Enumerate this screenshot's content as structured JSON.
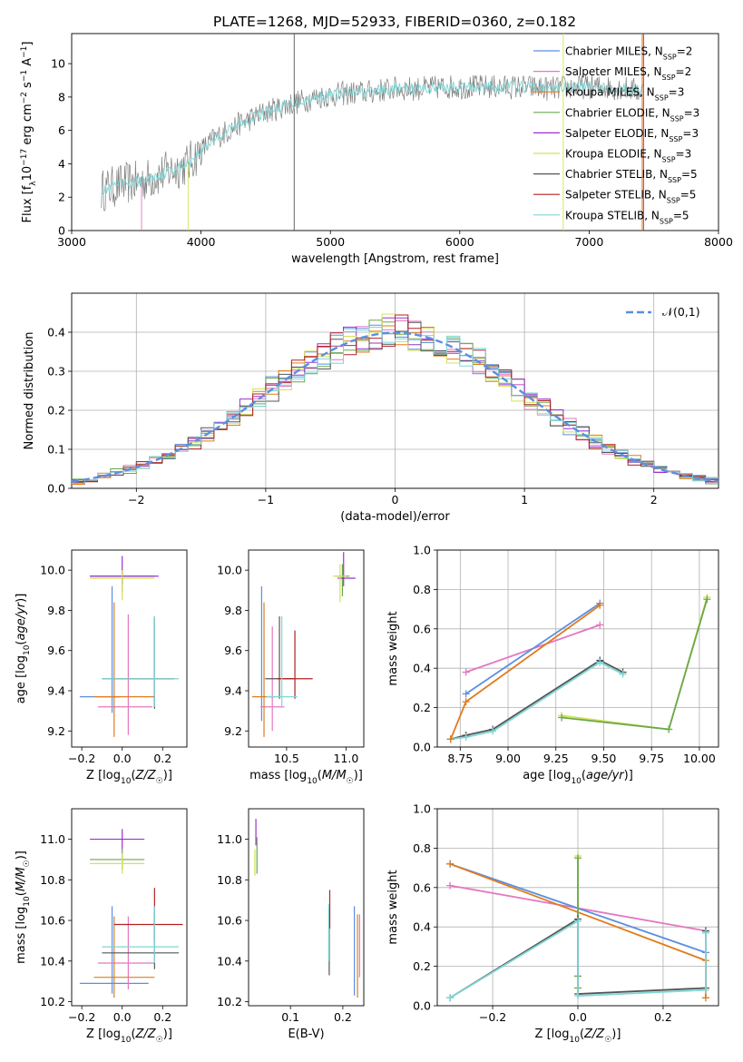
{
  "figure_title": "PLATE=1268, MJD=52933, FIBERID=0360, z=0.182",
  "colors": {
    "Chabrier MILES": "#5b8fe0",
    "Salpeter MILES": "#e377c2",
    "Kroupa MILES": "#e07b1f",
    "Chabrier ELODIE": "#6aa84f",
    "Salpeter ELODIE": "#9b30d0",
    "Kroupa ELODIE": "#d4e157",
    "Chabrier STELIB": "#555555",
    "Salpeter STELIB": "#b22222",
    "Kroupa STELIB": "#7fd6d6",
    "normal": "#5b8fe0",
    "grid": "#b0b0b0"
  },
  "chart_data": [
    {
      "id": "spectrum",
      "type": "line",
      "xlabel": "wavelength [Angstrom, rest frame]",
      "ylabel": "Flux [f_λ10^-17 erg cm^-2 s^-1 A^-1]",
      "xlim": [
        3000,
        8000
      ],
      "ylim": [
        0,
        11.8
      ],
      "xticks": [
        3000,
        4000,
        5000,
        6000,
        7000,
        8000
      ],
      "yticks": [
        0,
        2,
        4,
        6,
        8,
        10
      ],
      "grid": false,
      "legend_position": "top-right",
      "observed_color": "#808080",
      "envelope": {
        "x": [
          3230,
          3400,
          3500,
          3600,
          3800,
          3900,
          4000,
          4100,
          4300,
          4500,
          4700,
          4900,
          5100,
          5300,
          5500,
          5700,
          5900,
          6100,
          6300,
          6500,
          6700,
          6900,
          7100,
          7300,
          7420
        ],
        "y": [
          2.4,
          2.8,
          2.9,
          3.1,
          3.7,
          4.0,
          4.8,
          5.5,
          6.4,
          7.1,
          7.6,
          8.0,
          8.2,
          8.3,
          8.5,
          8.5,
          8.6,
          8.6,
          8.6,
          8.6,
          8.5,
          8.6,
          8.6,
          8.5,
          8.3
        ]
      },
      "legend": [
        {
          "label": "Chabrier MILES",
          "nssp": "2"
        },
        {
          "label": "Salpeter MILES",
          "nssp": "2"
        },
        {
          "label": "Kroupa MILES",
          "nssp": "3"
        },
        {
          "label": "Chabrier ELODIE",
          "nssp": "3"
        },
        {
          "label": "Salpeter ELODIE",
          "nssp": "3"
        },
        {
          "label": "Kroupa ELODIE",
          "nssp": "3"
        },
        {
          "label": "Chabrier STELIB",
          "nssp": "5"
        },
        {
          "label": "Salpeter STELIB",
          "nssp": "5"
        },
        {
          "label": "Kroupa STELIB",
          "nssp": "5"
        }
      ]
    },
    {
      "id": "residuals",
      "type": "step",
      "xlabel": "(data-model)/error",
      "ylabel": "Normed distribution",
      "xlim": [
        -2.5,
        2.5
      ],
      "ylim": [
        0,
        0.5
      ],
      "xticks": [
        -2,
        -1,
        0,
        1,
        2
      ],
      "yticks": [
        0.0,
        0.1,
        0.2,
        0.3,
        0.4
      ],
      "grid": true,
      "legend_position": "top-right",
      "legend": [
        "𝒩(0,1)"
      ],
      "bin_width": 0.1,
      "bins_start": -2.5
    },
    {
      "id": "age-vs-Z",
      "type": "errorbar",
      "xlabel": "Z [log10(Z/Z☉)]",
      "ylabel": "age  [log10(age/yr)]",
      "xlim": [
        -0.25,
        0.32
      ],
      "ylim": [
        9.12,
        10.1
      ],
      "xticks": [
        -0.2,
        0.0,
        0.2
      ],
      "yticks": [
        9.2,
        9.4,
        9.6,
        9.8,
        10.0
      ],
      "grid": false,
      "points": [
        {
          "model": "Chabrier MILES",
          "x": -0.05,
          "y": 9.37,
          "xerr": [
            0.16,
            0.04
          ],
          "yerr": [
            0.08,
            0.55
          ]
        },
        {
          "model": "Salpeter MILES",
          "x": 0.03,
          "y": 9.32,
          "xerr": [
            0.15,
            0.12
          ],
          "yerr": [
            0.14,
            0.46
          ]
        },
        {
          "model": "Kroupa MILES",
          "x": -0.04,
          "y": 9.37,
          "xerr": [
            0.1,
            0.2
          ],
          "yerr": [
            0.2,
            0.47
          ]
        },
        {
          "model": "Chabrier ELODIE",
          "x": 0.0,
          "y": 9.97,
          "xerr": [
            0.16,
            0.16
          ],
          "yerr": [
            0.08,
            0.03
          ]
        },
        {
          "model": "Salpeter ELODIE",
          "x": 0.0,
          "y": 9.97,
          "xerr": [
            0.16,
            0.18
          ],
          "yerr": [
            0.04,
            0.1
          ]
        },
        {
          "model": "Kroupa ELODIE",
          "x": 0.0,
          "y": 9.96,
          "xerr": [
            0.16,
            0.16
          ],
          "yerr": [
            0.11,
            0.04
          ]
        },
        {
          "model": "Chabrier STELIB",
          "x": 0.16,
          "y": 9.46,
          "xerr": [
            0.26,
            0.09
          ],
          "yerr": [
            0.15,
            0.3
          ]
        },
        {
          "model": "Salpeter STELIB",
          "x": 0.16,
          "y": 9.46,
          "xerr": [
            0.2,
            0.1
          ],
          "yerr": [
            0.14,
            0.31
          ]
        },
        {
          "model": "Kroupa STELIB",
          "x": 0.16,
          "y": 9.46,
          "xerr": [
            0.26,
            0.12
          ],
          "yerr": [
            0.14,
            0.31
          ]
        }
      ]
    },
    {
      "id": "age-vs-mass",
      "type": "errorbar",
      "xlabel": "mass [log10(M/M☉)]",
      "ylabel": "",
      "xlim": [
        10.18,
        11.15
      ],
      "ylim": [
        9.12,
        10.1
      ],
      "xticks": [
        10.5,
        11.0
      ],
      "yticks": [
        9.2,
        9.4,
        9.6,
        9.8,
        10.0
      ],
      "grid": false,
      "points": [
        {
          "model": "Chabrier MILES",
          "x": 10.29,
          "y": 9.37,
          "xerr": [
            0.0,
            0.0
          ],
          "yerr": [
            0.12,
            0.55
          ]
        },
        {
          "model": "Salpeter MILES",
          "x": 10.38,
          "y": 9.32,
          "xerr": [
            0.1,
            0.1
          ],
          "yerr": [
            0.12,
            0.4
          ]
        },
        {
          "model": "Kroupa MILES",
          "x": 10.31,
          "y": 9.37,
          "xerr": [
            0.1,
            0.1
          ],
          "yerr": [
            0.2,
            0.47
          ]
        },
        {
          "model": "Chabrier ELODIE",
          "x": 10.97,
          "y": 9.97,
          "xerr": [
            0.05,
            0.06
          ],
          "yerr": [
            0.1,
            0.06
          ]
        },
        {
          "model": "Salpeter ELODIE",
          "x": 10.98,
          "y": 9.96,
          "xerr": [
            0.05,
            0.1
          ],
          "yerr": [
            0.04,
            0.13
          ]
        },
        {
          "model": "Kroupa ELODIE",
          "x": 10.95,
          "y": 9.97,
          "xerr": [
            0.06,
            0.05
          ],
          "yerr": [
            0.13,
            0.06
          ]
        },
        {
          "model": "Chabrier STELIB",
          "x": 10.44,
          "y": 9.46,
          "xerr": [
            0.12,
            0.12
          ],
          "yerr": [
            0.1,
            0.31
          ]
        },
        {
          "model": "Salpeter STELIB",
          "x": 10.57,
          "y": 9.46,
          "xerr": [
            0.15,
            0.15
          ],
          "yerr": [
            0.1,
            0.24
          ]
        },
        {
          "model": "Kroupa STELIB",
          "x": 10.46,
          "y": 9.37,
          "xerr": [
            0.13,
            0.13
          ],
          "yerr": [
            0.05,
            0.4
          ]
        }
      ]
    },
    {
      "id": "weight-vs-age",
      "type": "line",
      "xlabel": "age  [log10(age/yr)]",
      "ylabel": "mass weight",
      "xlim": [
        8.63,
        10.1
      ],
      "ylim": [
        0,
        1
      ],
      "xticks": [
        8.75,
        9.0,
        9.25,
        9.5,
        9.75,
        10.0
      ],
      "yticks": [
        0.0,
        0.2,
        0.4,
        0.6,
        0.8,
        1.0
      ],
      "grid": true,
      "series": [
        {
          "model": "Kroupa ELODIE",
          "x": [
            9.28,
            9.84,
            10.04
          ],
          "y": [
            0.16,
            0.09,
            0.76
          ]
        },
        {
          "model": "Chabrier ELODIE",
          "x": [
            9.28,
            9.84,
            10.04
          ],
          "y": [
            0.15,
            0.09,
            0.75
          ]
        },
        {
          "model": "Chabrier STELIB",
          "x": [
            8.7,
            8.78,
            8.92,
            9.48,
            9.6
          ],
          "y": [
            0.04,
            0.06,
            0.09,
            0.44,
            0.38
          ]
        },
        {
          "model": "Kroupa STELIB",
          "x": [
            8.7,
            8.78,
            8.92,
            9.48,
            9.6
          ],
          "y": [
            0.04,
            0.05,
            0.08,
            0.43,
            0.37
          ]
        },
        {
          "model": "Salpeter MILES",
          "x": [
            8.78,
            9.48
          ],
          "y": [
            0.38,
            0.62
          ]
        },
        {
          "model": "Chabrier MILES",
          "x": [
            8.78,
            9.48
          ],
          "y": [
            0.27,
            0.73
          ]
        },
        {
          "model": "Kroupa MILES",
          "x": [
            8.7,
            8.78,
            9.48
          ],
          "y": [
            0.04,
            0.23,
            0.72
          ]
        }
      ]
    },
    {
      "id": "mass-vs-Z",
      "type": "errorbar",
      "xlabel": "Z [log10(Z/Z☉)]",
      "ylabel": "mass [log10(M/M☉)]",
      "xlim": [
        -0.25,
        0.32
      ],
      "ylim": [
        10.18,
        11.15
      ],
      "xticks": [
        -0.2,
        0.0,
        0.2
      ],
      "yticks": [
        10.2,
        10.4,
        10.6,
        10.8,
        11.0
      ],
      "grid": false,
      "points": [
        {
          "model": "Chabrier MILES",
          "x": -0.05,
          "y": 10.29,
          "xerr": [
            0.16,
            0.18
          ],
          "yerr": [
            0.05,
            0.38
          ]
        },
        {
          "model": "Salpeter MILES",
          "x": 0.03,
          "y": 10.39,
          "xerr": [
            0.15,
            0.13
          ],
          "yerr": [
            0.13,
            0.23
          ]
        },
        {
          "model": "Kroupa MILES",
          "x": -0.04,
          "y": 10.32,
          "xerr": [
            0.1,
            0.2
          ],
          "yerr": [
            0.1,
            0.3
          ]
        },
        {
          "model": "Chabrier ELODIE",
          "x": 0.0,
          "y": 10.9,
          "xerr": [
            0.16,
            0.11
          ],
          "yerr": [
            0.05,
            0.05
          ]
        },
        {
          "model": "Salpeter ELODIE",
          "x": 0.0,
          "y": 11.0,
          "xerr": [
            0.16,
            0.11
          ],
          "yerr": [
            0.05,
            0.05
          ]
        },
        {
          "model": "Kroupa ELODIE",
          "x": 0.0,
          "y": 10.88,
          "xerr": [
            0.16,
            0.11
          ],
          "yerr": [
            0.05,
            0.05
          ]
        },
        {
          "model": "Chabrier STELIB",
          "x": 0.16,
          "y": 10.44,
          "xerr": [
            0.26,
            0.12
          ],
          "yerr": [
            0.08,
            0.2
          ]
        },
        {
          "model": "Salpeter STELIB",
          "x": 0.16,
          "y": 10.58,
          "xerr": [
            0.2,
            0.14
          ],
          "yerr": [
            0.08,
            0.18
          ]
        },
        {
          "model": "Kroupa STELIB",
          "x": 0.16,
          "y": 10.47,
          "xerr": [
            0.26,
            0.12
          ],
          "yerr": [
            0.08,
            0.2
          ]
        }
      ]
    },
    {
      "id": "mass-vs-ebv",
      "type": "errorbar",
      "xlabel": "E(B-V)",
      "ylabel": "",
      "xlim": [
        0.02,
        0.24
      ],
      "ylim": [
        10.18,
        11.15
      ],
      "xticks": [
        0.1,
        0.2
      ],
      "yticks": [
        10.2,
        10.4,
        10.6,
        10.8,
        11.0
      ],
      "grid": false,
      "points": [
        {
          "model": "Chabrier MILES",
          "x": 0.222,
          "y": 10.29,
          "xerr": [
            0.0,
            0.0
          ],
          "yerr": [
            0.06,
            0.38
          ]
        },
        {
          "model": "Salpeter MILES",
          "x": 0.232,
          "y": 10.43,
          "xerr": [
            0.0,
            0.0
          ],
          "yerr": [
            0.11,
            0.2
          ]
        },
        {
          "model": "Kroupa MILES",
          "x": 0.228,
          "y": 10.37,
          "xerr": [
            0.0,
            0.0
          ],
          "yerr": [
            0.15,
            0.26
          ]
        },
        {
          "model": "Chabrier ELODIE",
          "x": 0.036,
          "y": 10.93,
          "xerr": [
            0.0,
            0.0
          ],
          "yerr": [
            0.1,
            0.08
          ]
        },
        {
          "model": "Salpeter ELODIE",
          "x": 0.034,
          "y": 11.03,
          "xerr": [
            0.0,
            0.0
          ],
          "yerr": [
            0.06,
            0.07
          ]
        },
        {
          "model": "Kroupa ELODIE",
          "x": 0.032,
          "y": 10.9,
          "xerr": [
            0.0,
            0.0
          ],
          "yerr": [
            0.08,
            0.05
          ]
        },
        {
          "model": "Chabrier STELIB",
          "x": 0.174,
          "y": 10.46,
          "xerr": [
            0.0,
            0.0
          ],
          "yerr": [
            0.13,
            0.2
          ]
        },
        {
          "model": "Salpeter STELIB",
          "x": 0.175,
          "y": 10.63,
          "xerr": [
            0.0,
            0.0
          ],
          "yerr": [
            0.07,
            0.12
          ]
        },
        {
          "model": "Kroupa STELIB",
          "x": 0.173,
          "y": 10.5,
          "xerr": [
            0.0,
            0.0
          ],
          "yerr": [
            0.1,
            0.18
          ]
        }
      ]
    },
    {
      "id": "weight-vs-Z",
      "type": "line",
      "xlabel": "Z [log10(Z/Z☉)]",
      "ylabel": "mass weight",
      "xlim": [
        -0.33,
        0.33
      ],
      "ylim": [
        0,
        1
      ],
      "xticks": [
        -0.2,
        0.0,
        0.2
      ],
      "yticks": [
        0.0,
        0.2,
        0.4,
        0.6,
        0.8,
        1.0
      ],
      "grid": true,
      "series": [
        {
          "model": "Salpeter MILES",
          "x": [
            -0.3,
            0.3
          ],
          "y": [
            0.61,
            0.38
          ]
        },
        {
          "model": "Chabrier MILES",
          "x": [
            -0.3,
            0.3
          ],
          "y": [
            0.72,
            0.27
          ]
        },
        {
          "model": "Kroupa MILES",
          "x": [
            -0.3,
            0.3,
            0.3
          ],
          "y": [
            0.72,
            0.23,
            0.04
          ]
        },
        {
          "model": "Kroupa ELODIE",
          "x": [
            0.0,
            0.0,
            0.0
          ],
          "y": [
            0.09,
            0.15,
            0.76
          ]
        },
        {
          "model": "Chabrier ELODIE",
          "x": [
            0.0,
            0.0,
            0.0
          ],
          "y": [
            0.09,
            0.15,
            0.75
          ]
        },
        {
          "model": "Chabrier STELIB",
          "x": [
            -0.3,
            0.0,
            0.0,
            0.3,
            0.3
          ],
          "y": [
            0.04,
            0.44,
            0.06,
            0.09,
            0.38
          ]
        },
        {
          "model": "Kroupa STELIB",
          "x": [
            -0.3,
            0.0,
            0.0,
            0.3,
            0.3
          ],
          "y": [
            0.04,
            0.43,
            0.05,
            0.08,
            0.37
          ]
        }
      ]
    }
  ]
}
